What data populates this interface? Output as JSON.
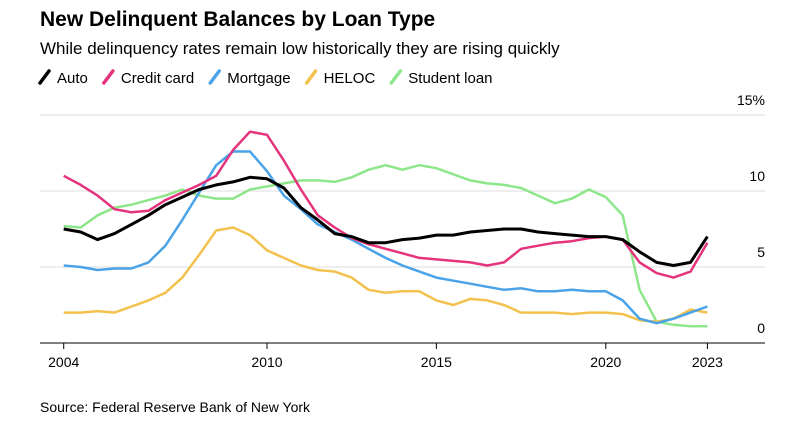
{
  "chart_data": {
    "type": "line",
    "title": "New Delinquent Balances by Loan Type",
    "subtitle": "While delinquency rates remain low historically they are rising quickly",
    "source": "Source: Federal Reserve Bank of New York",
    "x": [
      2004,
      2004.5,
      2005,
      2005.5,
      2006,
      2006.5,
      2007,
      2007.5,
      2008,
      2008.5,
      2009,
      2009.5,
      2010,
      2010.5,
      2011,
      2011.5,
      2012,
      2012.5,
      2013,
      2013.5,
      2014,
      2014.5,
      2015,
      2015.5,
      2016,
      2016.5,
      2017,
      2017.5,
      2018,
      2018.5,
      2019,
      2019.5,
      2020,
      2020.5,
      2021,
      2021.5,
      2022,
      2022.5,
      2023
    ],
    "series": [
      {
        "name": "Auto",
        "color": "#000000",
        "values": [
          7.5,
          7.3,
          6.8,
          7.2,
          7.8,
          8.4,
          9.1,
          9.6,
          10.1,
          10.4,
          10.6,
          10.9,
          10.8,
          10.2,
          8.9,
          8.1,
          7.2,
          7.0,
          6.6,
          6.6,
          6.8,
          6.9,
          7.1,
          7.1,
          7.3,
          7.4,
          7.5,
          7.5,
          7.3,
          7.2,
          7.1,
          7.0,
          7.0,
          6.8,
          6.0,
          5.3,
          5.1,
          5.3,
          7.0
        ]
      },
      {
        "name": "Credit card",
        "color": "#e5337e",
        "values": [
          11.0,
          10.4,
          9.7,
          8.8,
          8.6,
          8.7,
          9.4,
          9.9,
          10.4,
          11.0,
          12.7,
          13.9,
          13.7,
          12.0,
          10.1,
          8.4,
          7.6,
          6.9,
          6.5,
          6.2,
          5.9,
          5.6,
          5.5,
          5.4,
          5.3,
          5.1,
          5.3,
          6.2,
          6.4,
          6.6,
          6.7,
          6.9,
          7.0,
          6.8,
          5.3,
          4.6,
          4.3,
          4.7,
          6.6
        ]
      },
      {
        "name": "Mortgage",
        "color": "#4aa3e8",
        "values": [
          5.1,
          5.0,
          4.8,
          4.9,
          4.9,
          5.3,
          6.4,
          8.1,
          9.9,
          11.7,
          12.6,
          12.6,
          11.3,
          9.7,
          8.8,
          7.8,
          7.3,
          6.8,
          6.2,
          5.6,
          5.1,
          4.7,
          4.3,
          4.1,
          3.9,
          3.7,
          3.5,
          3.6,
          3.4,
          3.4,
          3.5,
          3.4,
          3.4,
          2.8,
          1.6,
          1.3,
          1.6,
          2.0,
          2.4
        ]
      },
      {
        "name": "HELOC",
        "color": "#f2c14e",
        "values": [
          2.0,
          2.0,
          2.1,
          2.0,
          2.4,
          2.8,
          3.3,
          4.3,
          5.8,
          7.4,
          7.6,
          7.1,
          6.1,
          5.6,
          5.1,
          4.8,
          4.7,
          4.3,
          3.5,
          3.3,
          3.4,
          3.4,
          2.8,
          2.5,
          2.9,
          2.8,
          2.5,
          2.0,
          2.0,
          2.0,
          1.9,
          2.0,
          2.0,
          1.9,
          1.5,
          1.4,
          1.6,
          2.2,
          2.0
        ]
      },
      {
        "name": "Student loan",
        "color": "#8ee68a",
        "values": [
          7.7,
          7.6,
          8.4,
          8.9,
          9.1,
          9.4,
          9.7,
          10.1,
          9.7,
          9.5,
          9.5,
          10.1,
          10.3,
          10.5,
          10.7,
          10.7,
          10.6,
          10.9,
          11.4,
          11.7,
          11.4,
          11.7,
          11.5,
          11.1,
          10.7,
          10.5,
          10.4,
          10.2,
          9.7,
          9.2,
          9.5,
          10.1,
          9.6,
          8.4,
          3.5,
          1.4,
          1.2,
          1.1,
          1.1
        ]
      }
    ],
    "xlim": [
      2003.3,
      2024.7
    ],
    "xticks": [
      2004,
      2010,
      2015,
      2020,
      2023
    ],
    "ylim": [
      0,
      15
    ],
    "yticks": [
      0,
      5,
      10,
      {
        "value": 15,
        "label": "15%"
      }
    ],
    "grid": true
  }
}
